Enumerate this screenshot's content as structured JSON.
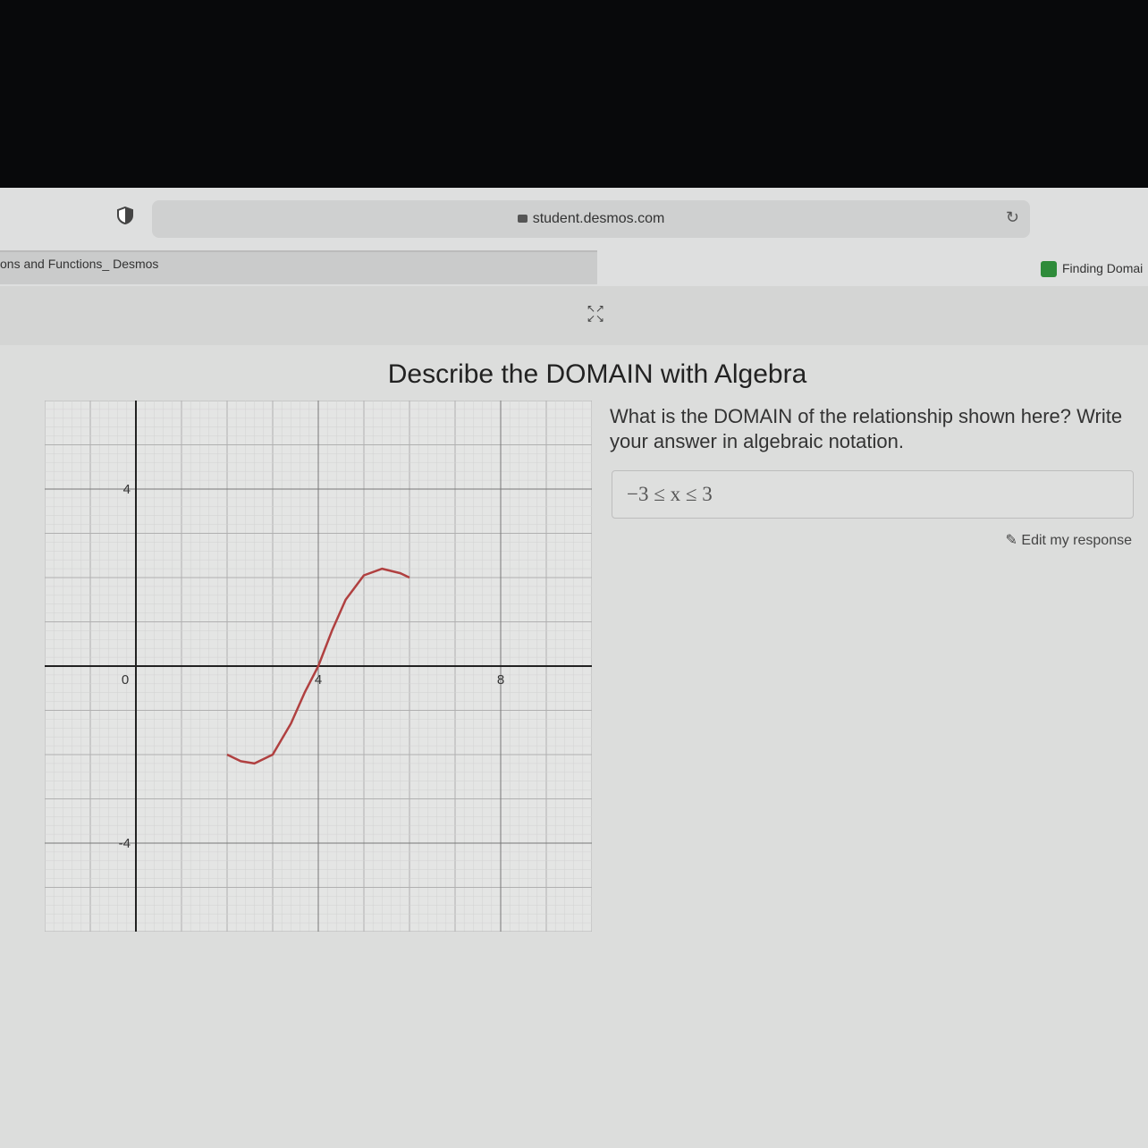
{
  "browser": {
    "url": "student.desmos.com",
    "tabs": [
      {
        "label": "ons and Functions_ Desmos",
        "active": true
      },
      {
        "label": "Finding Domai",
        "active": false
      }
    ]
  },
  "activity": {
    "title": "Describe the DOMAIN with Algebra",
    "question": "What is the DOMAIN of the relationship shown here? Write your answer in algebraic notation.",
    "answer": "−3 ≤ x ≤ 3",
    "edit_label": "Edit my response"
  },
  "graph": {
    "x_range": [
      -2,
      10
    ],
    "y_range": [
      -6,
      6
    ],
    "x_tick_labels": [
      "0",
      "4",
      "8"
    ],
    "y_tick_labels": [
      "4",
      "-4"
    ],
    "curve_color": "#b04040",
    "curve_points": [
      [
        2,
        -2
      ],
      [
        2.3,
        -2.15
      ],
      [
        2.6,
        -2.2
      ],
      [
        3,
        -2
      ],
      [
        3.4,
        -1.3
      ],
      [
        3.7,
        -0.6
      ],
      [
        4,
        0
      ],
      [
        4.3,
        0.8
      ],
      [
        4.6,
        1.5
      ],
      [
        5,
        2.05
      ],
      [
        5.4,
        2.2
      ],
      [
        5.8,
        2.1
      ],
      [
        6,
        2
      ]
    ]
  }
}
